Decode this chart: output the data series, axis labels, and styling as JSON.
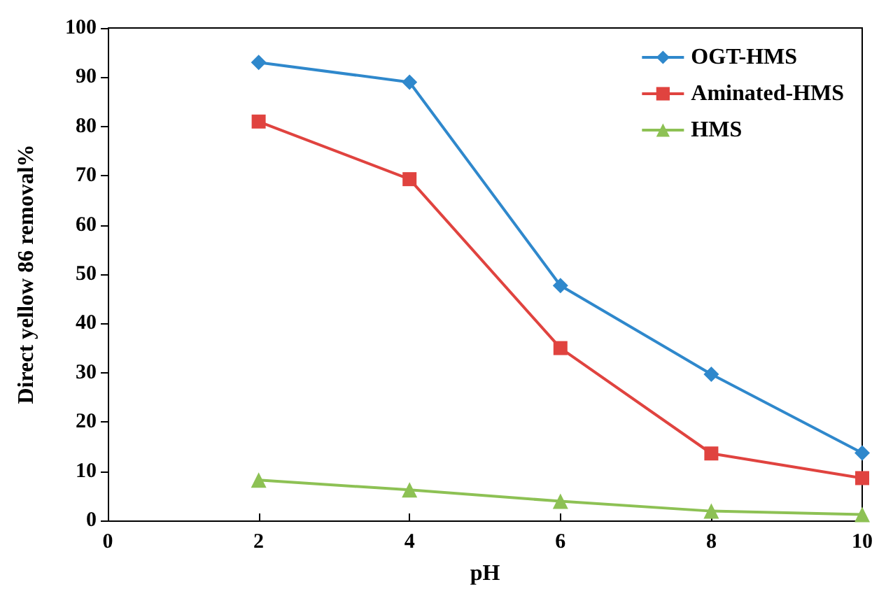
{
  "chart_data": {
    "type": "line",
    "xlabel": "pH",
    "ylabel": "Direct yellow 86 removal%",
    "x": [
      2,
      4,
      6,
      8,
      10
    ],
    "series": [
      {
        "name": "OGT-HMS",
        "color": "#2f88cc",
        "marker": "diamond",
        "values": [
          93,
          89,
          47.7,
          29.7,
          13.7
        ]
      },
      {
        "name": "Aminated-HMS",
        "color": "#e0433f",
        "marker": "square",
        "values": [
          81,
          69.3,
          35,
          13.6,
          8.6
        ]
      },
      {
        "name": "HMS",
        "color": "#8dc154",
        "marker": "triangle",
        "values": [
          8.2,
          6.2,
          3.9,
          1.9,
          1.2
        ]
      }
    ],
    "xlim": [
      0,
      10
    ],
    "xticks": [
      0,
      2,
      4,
      6,
      8,
      10
    ],
    "ylim": [
      0,
      100
    ],
    "yticks": [
      0,
      10,
      20,
      30,
      40,
      50,
      60,
      70,
      80,
      90,
      100
    ],
    "grid": false,
    "legend": "top right"
  }
}
